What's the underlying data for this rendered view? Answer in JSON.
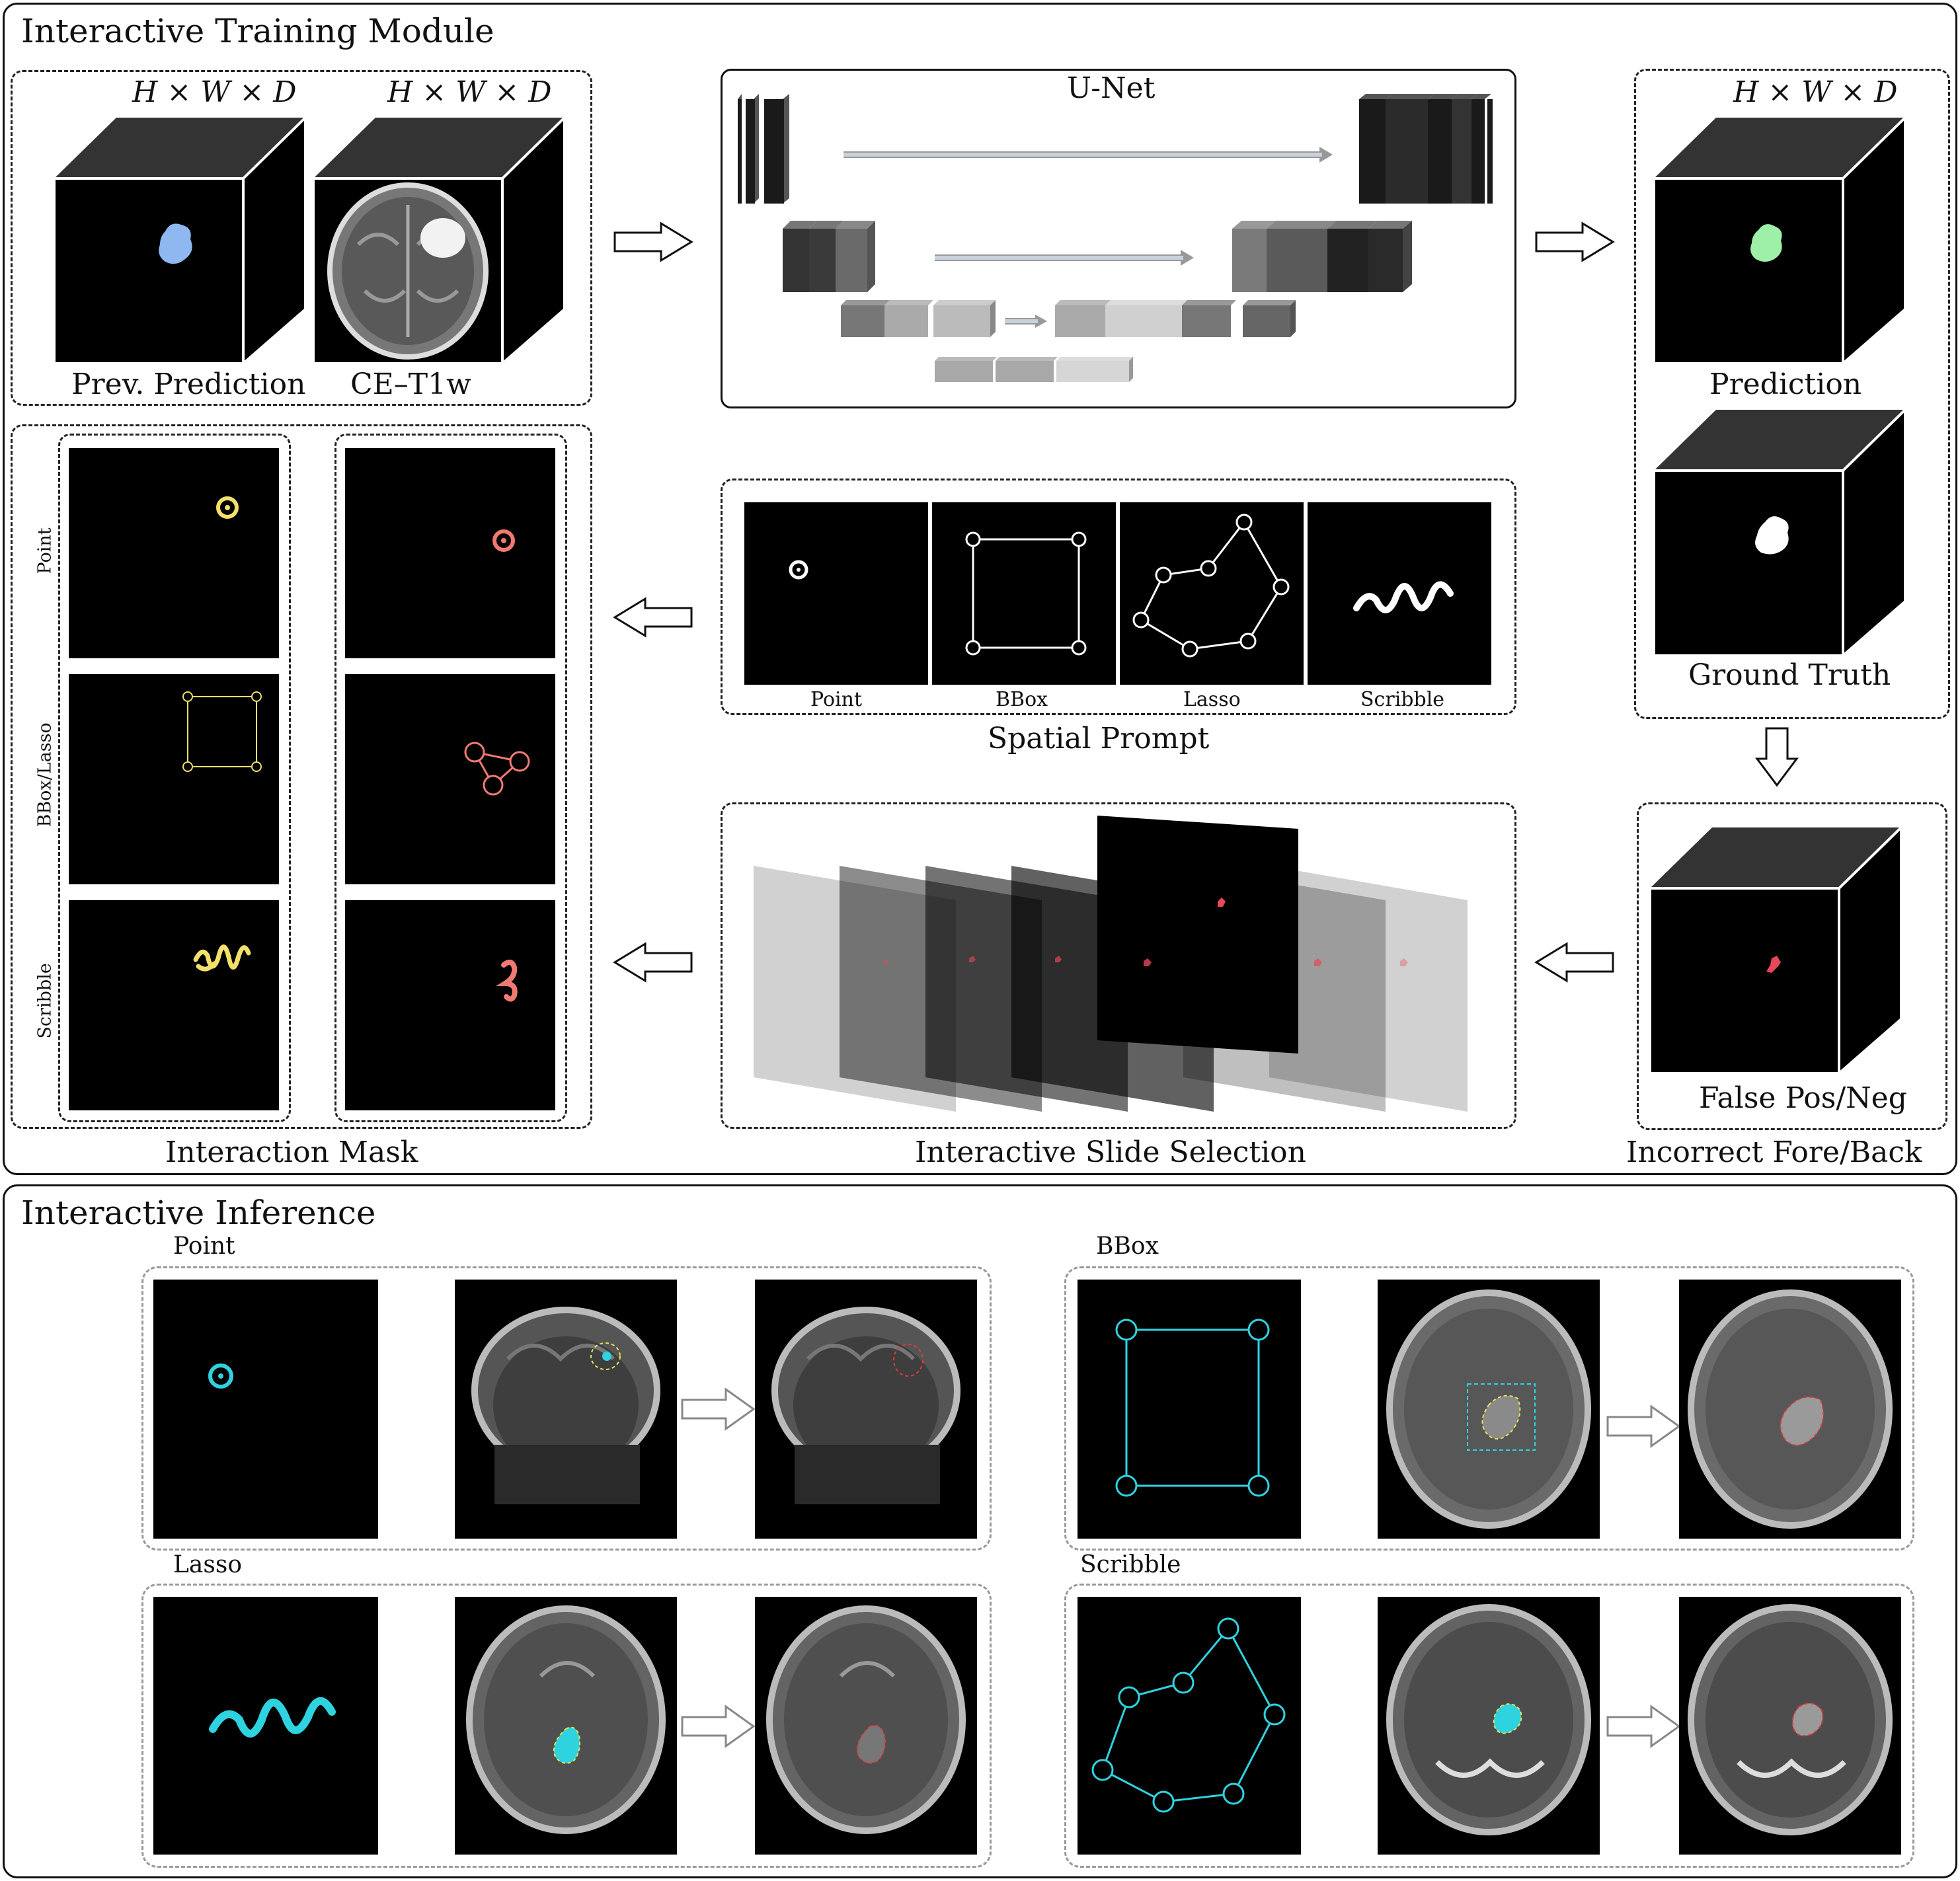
{
  "training": {
    "title": "Interactive Training Module",
    "input": {
      "dim1": "H × W × D",
      "dim2": "H × W × D",
      "prev_label": "Prev. Prediction",
      "ce_label": "CE–T1w"
    },
    "unet": {
      "label": "U-Net"
    },
    "output": {
      "dim": "H × W × D",
      "pred_label": "Prediction",
      "gt_label": "Ground Truth"
    },
    "spatial": {
      "title": "Spatial Prompt",
      "items": [
        "Point",
        "BBox",
        "Lasso",
        "Scribble"
      ]
    },
    "mask": {
      "title": "Interaction Mask",
      "rows": [
        "Point",
        "BBox/Lasso",
        "Scribble"
      ]
    },
    "slides": {
      "title": "Interactive Slide Selection"
    },
    "incorrect": {
      "title": "Incorrect Fore/Back",
      "label": "False Pos/Neg"
    }
  },
  "inference": {
    "title": "Interactive Inference",
    "groups": [
      "Point",
      "BBox",
      "Lasso",
      "Scribble"
    ]
  },
  "colors": {
    "prev_prediction": "#8fb8f0",
    "prediction": "#9ef0a8",
    "ground_truth": "#ffffff",
    "mask_positive": "#f2e06a",
    "mask_negative": "#f07a72",
    "error": "#e4485a",
    "inference_prompt": "#2fd3e0",
    "inference_result": "#e03a3a"
  }
}
